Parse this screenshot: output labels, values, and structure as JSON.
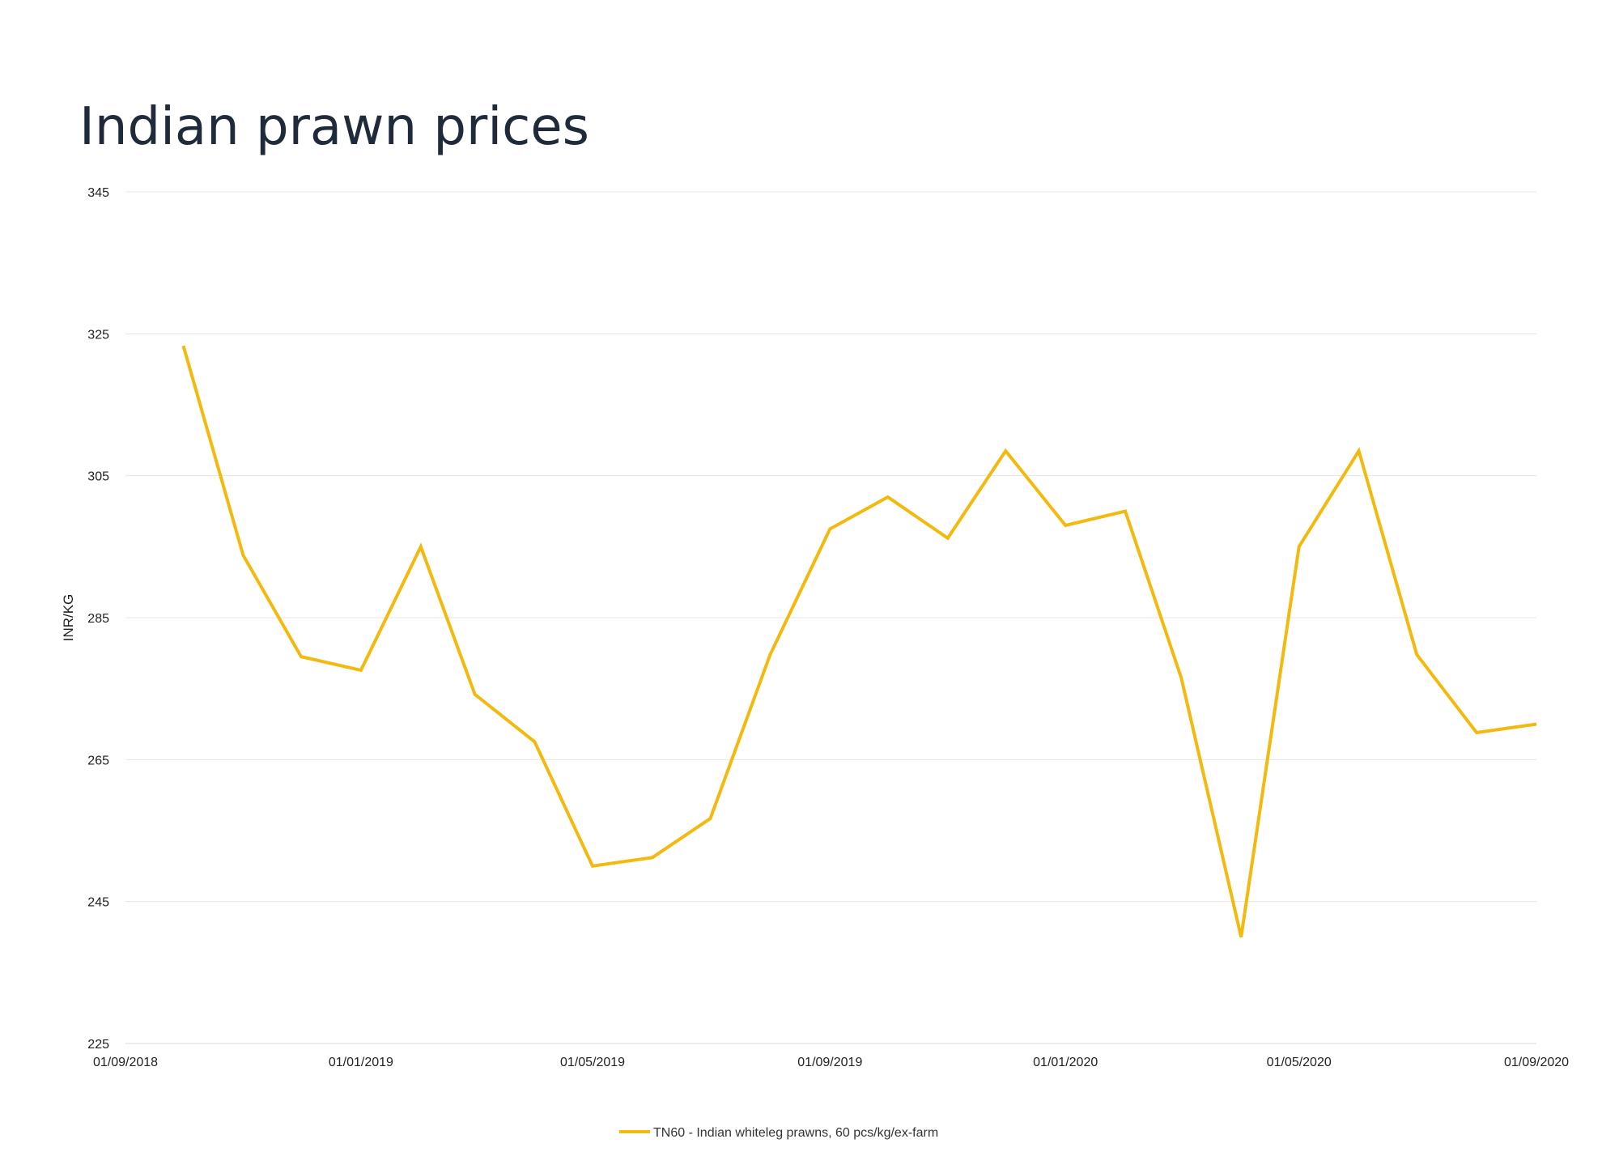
{
  "chart_data": {
    "type": "line",
    "title": "Indian prawn prices",
    "ylabel": "INR/KG",
    "xlabel": "",
    "ylim": [
      225,
      345
    ],
    "yticks": [
      225,
      245,
      265,
      285,
      305,
      325,
      345
    ],
    "xlim": [
      "2018-09-01",
      "2020-09-01"
    ],
    "xticks": [
      {
        "date": "2018-09-01",
        "label": "01/09/2018"
      },
      {
        "date": "2019-01-01",
        "label": "01/01/2019"
      },
      {
        "date": "2019-05-01",
        "label": "01/05/2019"
      },
      {
        "date": "2019-09-01",
        "label": "01/09/2019"
      },
      {
        "date": "2020-01-01",
        "label": "01/01/2020"
      },
      {
        "date": "2020-05-01",
        "label": "01/05/2020"
      },
      {
        "date": "2020-09-01",
        "label": "01/09/2020"
      }
    ],
    "grid": true,
    "legend_position": "bottom",
    "series": [
      {
        "name": "TN60 - Indian whiteleg prawns, 60 pcs/kg/ex-farm",
        "color": "#f2b90f",
        "x": [
          "2018-10-01",
          "2018-11-01",
          "2018-12-01",
          "2019-01-01",
          "2019-02-01",
          "2019-03-01",
          "2019-04-01",
          "2019-05-01",
          "2019-06-01",
          "2019-07-01",
          "2019-08-01",
          "2019-09-01",
          "2019-10-01",
          "2019-11-01",
          "2019-12-01",
          "2020-01-01",
          "2020-02-01",
          "2020-03-01",
          "2020-04-01",
          "2020-05-01",
          "2020-06-01",
          "2020-07-01",
          "2020-08-01",
          "2020-09-01"
        ],
        "y": [
          323.3,
          293.8,
          279.5,
          277.6,
          295.0,
          274.2,
          267.5,
          250.0,
          251.2,
          256.7,
          279.8,
          297.5,
          302.0,
          296.2,
          308.5,
          298.0,
          300.0,
          276.5,
          240.0,
          295.0,
          308.5,
          279.8,
          268.8,
          270.0
        ]
      }
    ]
  }
}
